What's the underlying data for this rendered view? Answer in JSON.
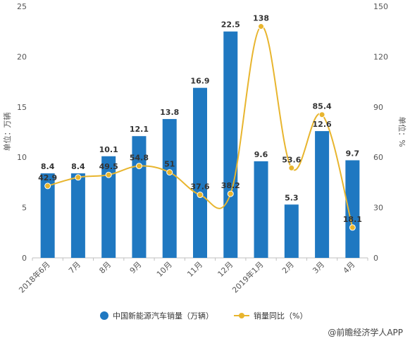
{
  "chart_data": {
    "type": "bar",
    "categories": [
      "2018年6月",
      "7月",
      "8月",
      "9月",
      "10月",
      "11月",
      "12月",
      "2019年1月",
      "2月",
      "3月",
      "4月"
    ],
    "series": [
      {
        "name": "中国新能源汽车销量（万辆）",
        "type": "bar",
        "axis": "left",
        "values": [
          8.4,
          8.4,
          10.1,
          12.1,
          13.8,
          16.9,
          22.5,
          9.6,
          5.3,
          12.6,
          9.7
        ],
        "labels": [
          "8.4",
          "8.4",
          "10.1",
          "12.1",
          "13.8",
          "16.9",
          "22.5",
          "9.6",
          "5.3",
          "12.6",
          "9.7"
        ]
      },
      {
        "name": "销量同比（%）",
        "type": "line",
        "axis": "right",
        "values": [
          42.9,
          48.0,
          49.5,
          54.8,
          51,
          37.6,
          38.2,
          138,
          53.6,
          85.4,
          18.1
        ],
        "labels": [
          "42.9",
          "",
          "49.5",
          "54.8",
          "51",
          "37.6",
          "38.2",
          "138",
          "53.6",
          "85.4",
          "18.1"
        ]
      }
    ],
    "ylabel": "单位：万辆",
    "y2label": "单位：%",
    "ylim": [
      0,
      25
    ],
    "yticks": [
      "0",
      "5",
      "10",
      "15",
      "20",
      "25"
    ],
    "y2lim": [
      0,
      150
    ],
    "y2ticks": [
      "0",
      "30",
      "60",
      "90",
      "120",
      "150"
    ],
    "grid": false,
    "legend_position": "bottom",
    "colors": {
      "bar": "#1f78c1",
      "line": "#e8b52e"
    },
    "source": "@前瞻经济学人APP"
  }
}
